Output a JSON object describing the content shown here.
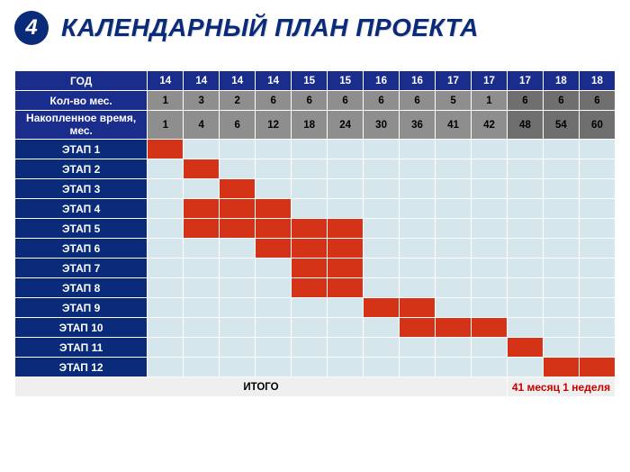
{
  "heading": {
    "badge": "4",
    "title": "КАЛЕНДАРНЫЙ ПЛАН ПРОЕКТА",
    "badge_bg": "#0a2a7a",
    "badge_fg": "#ffffff",
    "title_color": "#0a2a7a",
    "title_fontsize": 28,
    "badge_fontsize": 24
  },
  "colors": {
    "header_row_bg": "#1b2d8c",
    "header_row_fg": "#ffffff",
    "row_label_bg": "#0a2a7a",
    "row_label_fg": "#ffffff",
    "gray_cell": "#8e8e8e",
    "dark_gray_cell": "#6f6f6f",
    "body_cell": "#d5e7ec",
    "gantt_fill": "#d43317",
    "gantt_fill_last3": "#d43317",
    "border": "#ffffff",
    "footer_bg": "#efefef",
    "footer_value_color": "#c90000",
    "footer_label_color": "#000000",
    "last3_overlay": "#6f6f6f"
  },
  "table": {
    "shaded_last_cols": 3,
    "row_headers": [
      "ГОД",
      "Кол-во мес.",
      "Накопленное время, мес."
    ],
    "years": [
      "14",
      "14",
      "14",
      "14",
      "15",
      "15",
      "16",
      "16",
      "17",
      "17",
      "17",
      "18",
      "18"
    ],
    "months": [
      "1",
      "3",
      "2",
      "6",
      "6",
      "6",
      "6",
      "6",
      "5",
      "1",
      "6",
      "6",
      "6"
    ],
    "cumulative": [
      "1",
      "4",
      "6",
      "12",
      "18",
      "24",
      "30",
      "36",
      "41",
      "42",
      "48",
      "54",
      "60"
    ],
    "stages": [
      {
        "label": "ЭТАП 1",
        "cells": [
          1,
          0,
          0,
          0,
          0,
          0,
          0,
          0,
          0,
          0,
          0,
          0,
          0
        ]
      },
      {
        "label": "ЭТАП 2",
        "cells": [
          0,
          1,
          0,
          0,
          0,
          0,
          0,
          0,
          0,
          0,
          0,
          0,
          0
        ]
      },
      {
        "label": "ЭТАП 3",
        "cells": [
          0,
          0,
          1,
          0,
          0,
          0,
          0,
          0,
          0,
          0,
          0,
          0,
          0
        ]
      },
      {
        "label": "ЭТАП 4",
        "cells": [
          0,
          1,
          1,
          1,
          0,
          0,
          0,
          0,
          0,
          0,
          0,
          0,
          0
        ]
      },
      {
        "label": "ЭТАП 5",
        "cells": [
          0,
          1,
          1,
          1,
          1,
          1,
          0,
          0,
          0,
          0,
          0,
          0,
          0
        ]
      },
      {
        "label": "ЭТАП 6",
        "cells": [
          0,
          0,
          0,
          1,
          1,
          1,
          0,
          0,
          0,
          0,
          0,
          0,
          0
        ]
      },
      {
        "label": "ЭТАП 7",
        "cells": [
          0,
          0,
          0,
          0,
          1,
          1,
          0,
          0,
          0,
          0,
          0,
          0,
          0
        ]
      },
      {
        "label": "ЭТАП 8",
        "cells": [
          0,
          0,
          0,
          0,
          1,
          1,
          0,
          0,
          0,
          0,
          0,
          0,
          0
        ]
      },
      {
        "label": "ЭТАП 9",
        "cells": [
          0,
          0,
          0,
          0,
          0,
          0,
          1,
          1,
          0,
          0,
          0,
          0,
          0
        ]
      },
      {
        "label": "ЭТАП 10",
        "cells": [
          0,
          0,
          0,
          0,
          0,
          0,
          0,
          1,
          1,
          1,
          0,
          0,
          0
        ]
      },
      {
        "label": "ЭТАП 11",
        "cells": [
          0,
          0,
          0,
          0,
          0,
          0,
          0,
          0,
          0,
          0,
          1,
          0,
          0
        ]
      },
      {
        "label": "ЭТАП 12",
        "cells": [
          0,
          0,
          0,
          0,
          0,
          0,
          0,
          0,
          0,
          0,
          0,
          1,
          1
        ]
      }
    ],
    "footer_label": "ИТОГО",
    "footer_value": "41 месяц 1 неделя"
  }
}
